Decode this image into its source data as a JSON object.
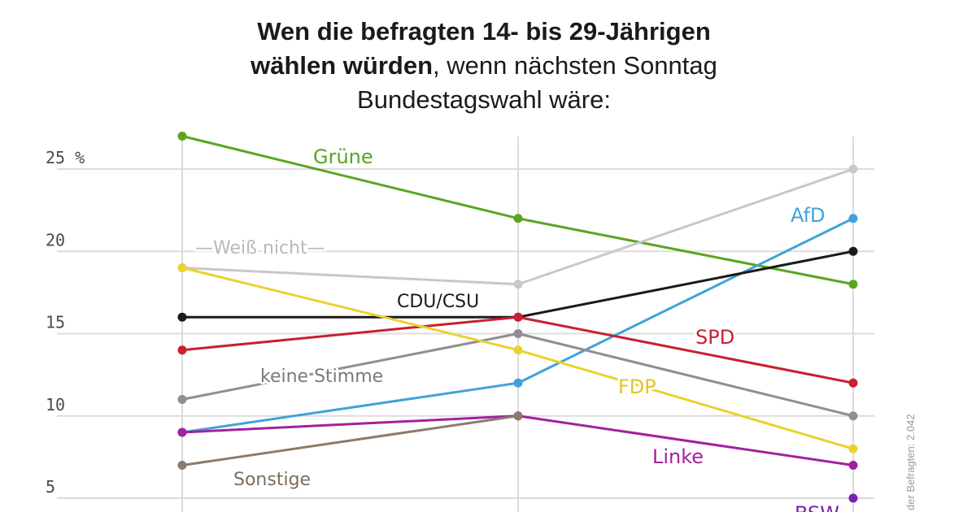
{
  "header": {
    "title_line1": "Wen die befragten 14- bis 29-Jährigen",
    "title_line2_bold": "wählen würden",
    "title_line2_rest": ", wenn nächsten Sonntag",
    "title_line3": "Bundestagswahl wäre:"
  },
  "side_note": "der Befragten: 2.042",
  "chart_data": {
    "type": "line",
    "title": "Wen die befragten 14- bis 29-Jährigen wählen würden, wenn nächsten Sonntag Bundestagswahl wäre:",
    "xlabel": "",
    "ylabel": "%",
    "x": [
      0,
      1,
      2
    ],
    "ylim": [
      4,
      27
    ],
    "yticks": [
      5,
      10,
      15,
      20,
      25
    ],
    "ytick_labels": [
      "5",
      "10",
      "15",
      "20",
      "25 %"
    ],
    "grid": true,
    "series": [
      {
        "name": "Grüne",
        "color": "#5aa51e",
        "values": [
          27,
          22,
          18
        ]
      },
      {
        "name": "Weiß nicht",
        "color": "#c8c8c8",
        "values": [
          19,
          18,
          25
        ]
      },
      {
        "name": "AfD",
        "color": "#3fa3d9",
        "values": [
          9,
          12,
          22
        ]
      },
      {
        "name": "CDU/CSU",
        "color": "#1a1a1a",
        "values": [
          16,
          16,
          20
        ]
      },
      {
        "name": "SPD",
        "color": "#c8202e",
        "values": [
          14,
          16,
          12
        ]
      },
      {
        "name": "keine Stimme",
        "color": "#8f8f8f",
        "values": [
          11,
          15,
          10
        ]
      },
      {
        "name": "FDP",
        "color": "#e8d230",
        "values": [
          19,
          14,
          8
        ]
      },
      {
        "name": "Linke",
        "color": "#a4209e",
        "values": [
          9,
          10,
          7
        ]
      },
      {
        "name": "Sonstige",
        "color": "#8c7b6b",
        "values": [
          7,
          10,
          null
        ]
      },
      {
        "name": "BSW",
        "color": "#7a1fb0",
        "values": [
          null,
          null,
          5
        ]
      }
    ],
    "labels": [
      {
        "text": "Grüne",
        "series": "Grüne",
        "color": "#5aa51e"
      },
      {
        "text": "—Weiß nicht—",
        "series": "Weiß nicht",
        "color": "#b9b9b9"
      },
      {
        "text": "AfD",
        "series": "AfD",
        "color": "#3fa3d9"
      },
      {
        "text": "CDU/CSU",
        "series": "CDU/CSU",
        "color": "#1a1a1a"
      },
      {
        "text": "SPD",
        "series": "SPD",
        "color": "#c8202e"
      },
      {
        "text": "keine Stimme",
        "series": "keine Stimme",
        "color": "#7a7a7a"
      },
      {
        "text": "FDP",
        "series": "FDP",
        "color": "#e2c51f"
      },
      {
        "text": "Linke",
        "series": "Linke",
        "color": "#a4209e"
      },
      {
        "text": "Sonstige",
        "series": "Sonstige",
        "color": "#7c6d5e"
      },
      {
        "text": "BSW",
        "series": "BSW",
        "color": "#7a1fb0"
      }
    ]
  }
}
